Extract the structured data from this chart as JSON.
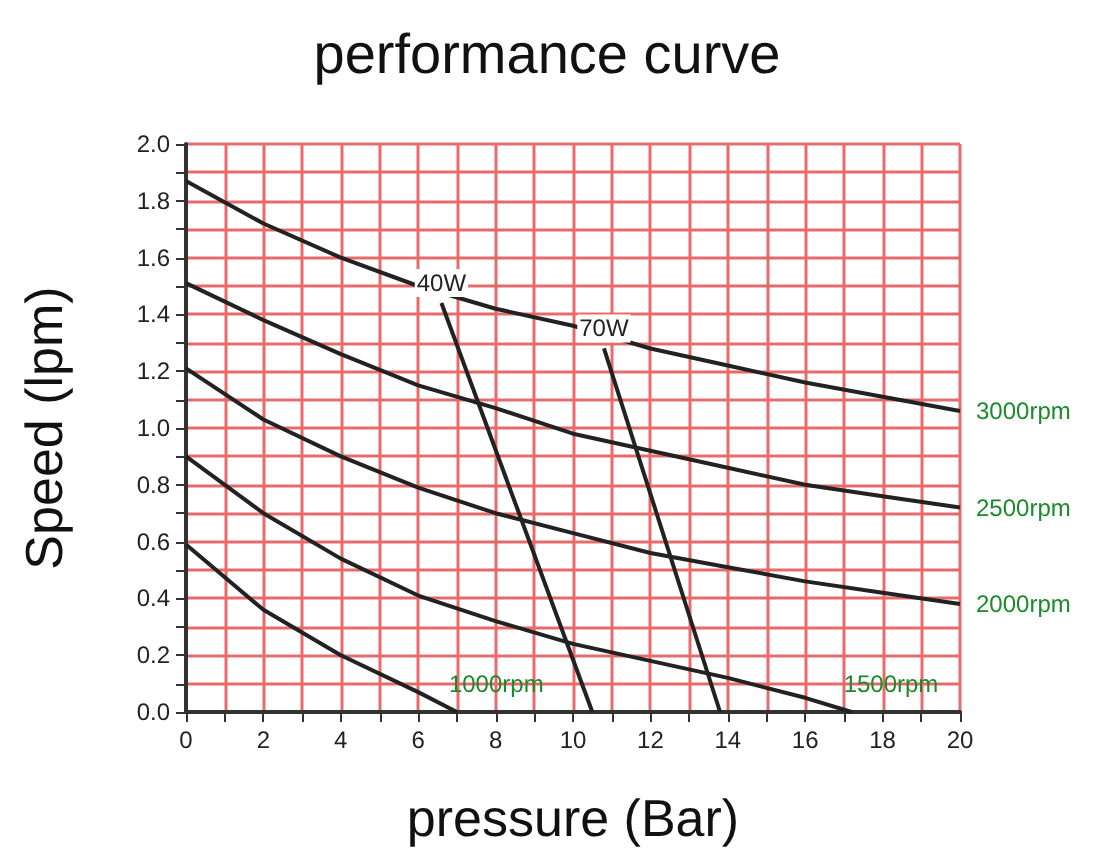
{
  "chart_data": {
    "type": "line",
    "title": "performance curve",
    "xlabel": "pressure (Bar)",
    "ylabel": "Speed (lpm)",
    "xlim": [
      0,
      20
    ],
    "ylim": [
      0,
      2
    ],
    "xticks": [
      0,
      {
        "value": 1,
        "label": null
      },
      2,
      {
        "value": 3,
        "label": null
      },
      4,
      {
        "value": 5,
        "label": null
      },
      6,
      {
        "value": 7,
        "label": null
      },
      8,
      {
        "value": 9,
        "label": null
      },
      10,
      {
        "value": 11,
        "label": null
      },
      12,
      {
        "value": 13,
        "label": null
      },
      14,
      {
        "value": 15,
        "label": null
      },
      16,
      {
        "value": 17,
        "label": null
      },
      18,
      {
        "value": 19,
        "label": null
      },
      20
    ],
    "yticks": [
      {
        "value": 0,
        "label": "0.0"
      },
      {
        "value": 0.1,
        "label": null
      },
      0.2,
      {
        "value": 0.3,
        "label": null
      },
      0.4,
      {
        "value": 0.5,
        "label": null
      },
      0.6,
      {
        "value": 0.7,
        "label": null
      },
      0.8,
      {
        "value": 0.9,
        "label": null
      },
      {
        "value": 1,
        "label": "1.0"
      },
      {
        "value": 1.1,
        "label": null
      },
      1.2,
      {
        "value": 1.3,
        "label": null
      },
      1.4,
      {
        "value": 1.5,
        "label": null
      },
      1.6,
      {
        "value": 1.7,
        "label": null
      },
      1.8,
      {
        "value": 1.9,
        "label": null
      },
      {
        "value": 2,
        "label": "2.0"
      }
    ],
    "grid": true,
    "legend": false,
    "marker": "none",
    "line_style": "solid",
    "series": [
      {
        "name": "3000rpm",
        "color": "#222222",
        "x": [
          0,
          2,
          4,
          6,
          8,
          10,
          12,
          14,
          16,
          18,
          20
        ],
        "values": [
          1.87,
          1.72,
          1.6,
          1.5,
          1.42,
          1.36,
          1.28,
          1.22,
          1.16,
          1.11,
          1.06
        ]
      },
      {
        "name": "2500rpm",
        "color": "#222222",
        "x": [
          0,
          2,
          4,
          6,
          8,
          10,
          12,
          14,
          16,
          18,
          20
        ],
        "values": [
          1.51,
          1.38,
          1.26,
          1.15,
          1.07,
          0.98,
          0.92,
          0.86,
          0.8,
          0.76,
          0.72
        ]
      },
      {
        "name": "2000rpm",
        "color": "#222222",
        "x": [
          0,
          2,
          4,
          6,
          8,
          10,
          12,
          14,
          16,
          18,
          20
        ],
        "values": [
          1.21,
          1.03,
          0.9,
          0.79,
          0.7,
          0.63,
          0.56,
          0.51,
          0.46,
          0.42,
          0.38
        ]
      },
      {
        "name": "1500rpm",
        "color": "#222222",
        "x": [
          0,
          2,
          4,
          6,
          8,
          10,
          12,
          14,
          16,
          17.2
        ],
        "values": [
          0.9,
          0.7,
          0.54,
          0.41,
          0.32,
          0.24,
          0.18,
          0.12,
          0.05,
          0
        ]
      },
      {
        "name": "1000rpm",
        "color": "#222222",
        "x": [
          0,
          2,
          4,
          6,
          7
        ],
        "values": [
          0.59,
          0.36,
          0.2,
          0.07,
          0
        ]
      },
      {
        "name": "40W",
        "color": "#222222",
        "x": [
          6.6,
          10.5
        ],
        "values": [
          1.44,
          0
        ]
      },
      {
        "name": "70W",
        "color": "#222222",
        "x": [
          10.8,
          13.8
        ],
        "values": [
          1.28,
          0
        ]
      }
    ]
  }
}
